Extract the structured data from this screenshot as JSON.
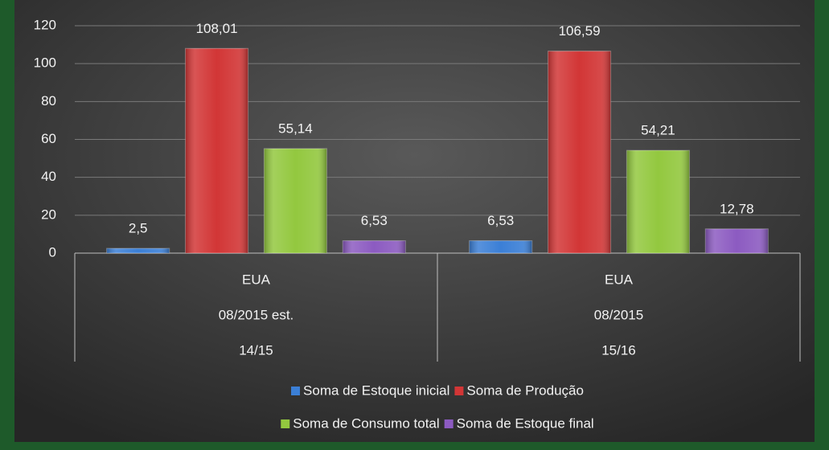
{
  "chart_data": {
    "type": "bar",
    "categories": [
      [
        "EUA",
        "08/2015 est.",
        "14/15"
      ],
      [
        "EUA",
        "08/2015",
        "15/16"
      ]
    ],
    "series": [
      {
        "name": "Soma de Estoque inicial",
        "color": "#3b7fd6",
        "values": [
          2.5,
          6.53
        ],
        "value_labels": [
          "2,5",
          "6,53"
        ]
      },
      {
        "name": "Soma de Produção",
        "color": "#d23636",
        "values": [
          108.01,
          106.59
        ],
        "value_labels": [
          "108,01",
          "106,59"
        ]
      },
      {
        "name": "Soma de Consumo total",
        "color": "#93c83f",
        "values": [
          55.14,
          54.21
        ],
        "value_labels": [
          "55,14",
          "54,21"
        ]
      },
      {
        "name": "Soma de Estoque final",
        "color": "#8c5bc1",
        "values": [
          6.53,
          12.78
        ],
        "value_labels": [
          "6,53",
          "12,78"
        ]
      }
    ],
    "ylim": [
      0,
      120
    ],
    "yticks": [
      0,
      20,
      40,
      60,
      80,
      100,
      120
    ],
    "grid": true,
    "legend": "bottom"
  }
}
